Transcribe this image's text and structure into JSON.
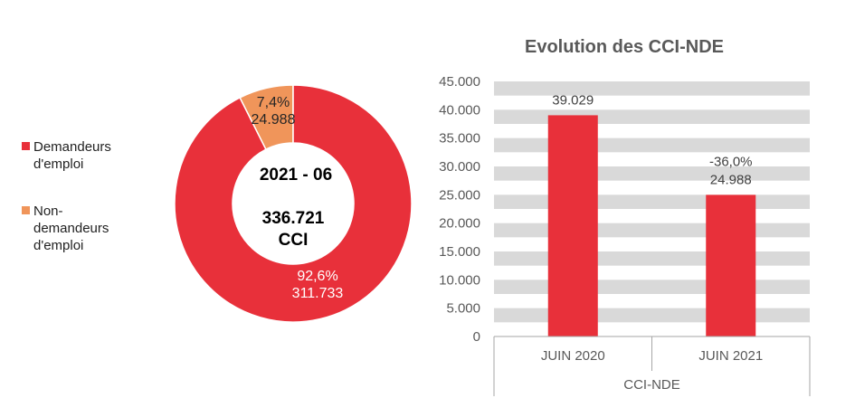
{
  "chart_data": [
    {
      "type": "pie",
      "center_label": {
        "period": "2021 - 06",
        "total": "336.721",
        "unit": "CCI"
      },
      "slices": [
        {
          "name": "Demandeurs d'emploi",
          "value": 311733,
          "value_label": "311.733",
          "percent_label": "92,6%",
          "color": "#e8303a"
        },
        {
          "name": "Non-demandeurs d'emploi",
          "value": 24988,
          "value_label": "24.988",
          "percent_label": "7,4%",
          "color": "#f0955a"
        }
      ],
      "legend": {
        "position": "left",
        "items": [
          {
            "lines": [
              "Demandeurs",
              "d'emploi"
            ],
            "color": "#e8303a"
          },
          {
            "lines": [
              "Non-",
              "demandeurs",
              "d'emploi"
            ],
            "color": "#f0955a"
          }
        ]
      }
    },
    {
      "type": "bar",
      "title": "Evolution des CCI-NDE",
      "categories": [
        "JUIN 2020",
        "JUIN 2021"
      ],
      "group_label": "CCI-NDE",
      "values": [
        39029,
        24988
      ],
      "value_labels": [
        "39.029",
        "24.988"
      ],
      "change_labels": [
        "",
        "-36,0%"
      ],
      "ylim": [
        0,
        45000
      ],
      "yticks": [
        0,
        5000,
        10000,
        15000,
        20000,
        25000,
        30000,
        35000,
        40000,
        45000
      ],
      "ytick_labels": [
        "0",
        "5.000",
        "10.000",
        "15.000",
        "20.000",
        "25.000",
        "30.000",
        "35.000",
        "40.000",
        "45.000"
      ],
      "grid": "horizontal bands",
      "bar_color": "#e8303a",
      "grid_color": "#d9d9d9"
    }
  ]
}
